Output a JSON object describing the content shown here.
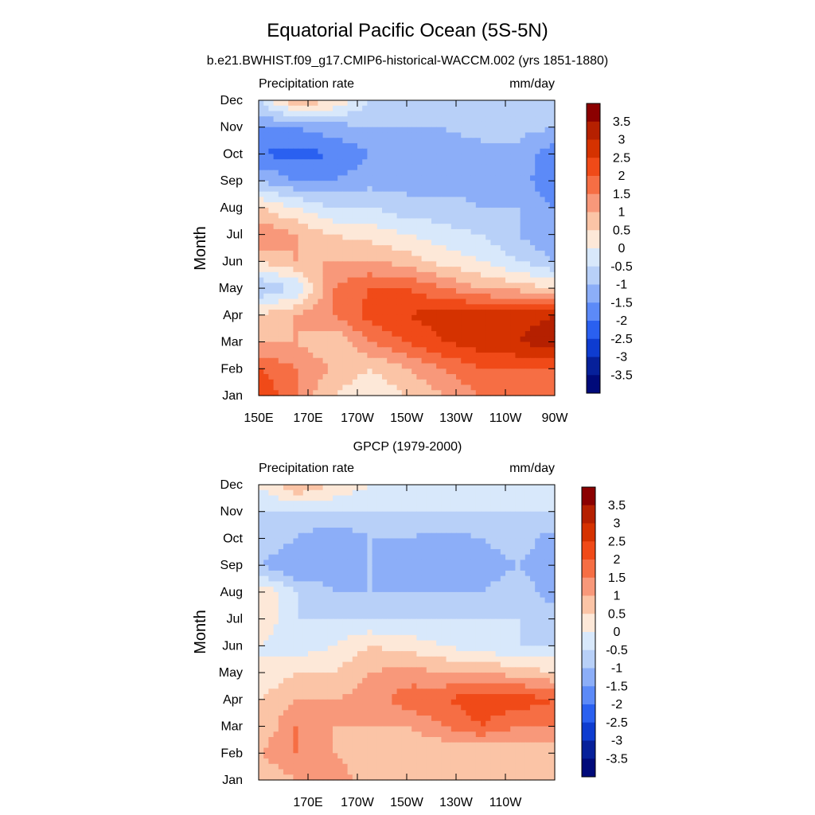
{
  "title": "Equatorial Pacific Ocean (5S-5N)",
  "colorbar": {
    "levels": [
      "3.5",
      "3",
      "2.5",
      "2",
      "1.5",
      "1",
      "0.5",
      "0",
      "-0.5",
      "-1",
      "-1.5",
      "-2",
      "-2.5",
      "-3",
      "-3.5"
    ],
    "colors": [
      "#8b0000",
      "#b52000",
      "#d53200",
      "#f04a18",
      "#f66e44",
      "#f8987a",
      "#fbc4a6",
      "#fde8d8",
      "#d8e8fb",
      "#b8d0f8",
      "#8caef8",
      "#5c8af8",
      "#2a60f0",
      "#0e3cd0",
      "#06209a",
      "#000a7a"
    ]
  },
  "chart_data": [
    {
      "type": "heatmap",
      "title": "b.e21.BWHIST.f09_g17.CMIP6-historical-WACCM.002 (yrs 1851-1880)",
      "left_label": "Precipitation rate",
      "right_label": "mm/day",
      "ylabel": "Month",
      "xlabel": "",
      "xlim": [
        150,
        270
      ],
      "x_ticks": [
        150,
        170,
        190,
        210,
        230,
        250,
        270
      ],
      "x_tick_labels": [
        "150E",
        "170E",
        "170W",
        "150W",
        "130W",
        "110W",
        "90W"
      ],
      "y_tick_labels": [
        "Jan",
        "Feb",
        "Mar",
        "Apr",
        "May",
        "Jun",
        "Jul",
        "Aug",
        "Sep",
        "Oct",
        "Nov",
        "Dec"
      ],
      "z_units": "mm/day",
      "x": [
        150,
        165,
        180,
        195,
        210,
        225,
        240,
        255,
        270
      ],
      "y": [
        "Jan",
        "Feb",
        "Mar",
        "Apr",
        "May",
        "Jun",
        "Jul",
        "Aug",
        "Sep",
        "Oct",
        "Nov",
        "Dec"
      ],
      "z": [
        [
          2.5,
          1.5,
          0.5,
          0,
          0.5,
          1,
          1.5,
          1.5,
          1.5
        ],
        [
          2,
          1.5,
          1,
          0.5,
          1,
          1.5,
          2,
          2,
          2
        ],
        [
          1,
          1,
          0.5,
          1.5,
          2,
          2.5,
          2.8,
          3,
          3.4
        ],
        [
          0.5,
          1,
          1.5,
          2.2,
          2.5,
          2.8,
          2.8,
          2.8,
          3
        ],
        [
          -1,
          -0.5,
          1.5,
          2,
          2,
          1.5,
          1,
          0.8,
          0.5
        ],
        [
          0.5,
          1,
          1,
          1,
          0.8,
          0.3,
          0,
          -0.5,
          -1
        ],
        [
          1.5,
          1,
          0.5,
          0.3,
          0,
          -0.3,
          -0.5,
          -1,
          -1.5
        ],
        [
          0.5,
          0,
          -0.5,
          -0.5,
          -0.8,
          -0.8,
          -1,
          -1,
          -1.5
        ],
        [
          -1,
          -1.5,
          -1.5,
          -1.2,
          -1.2,
          -1.2,
          -1.2,
          -1.2,
          -2
        ],
        [
          -2,
          -2.2,
          -2,
          -1.5,
          -1.2,
          -1.2,
          -1.2,
          -1.2,
          -1.8
        ],
        [
          -1.5,
          -1.5,
          -1.2,
          -1,
          -1,
          -1,
          -0.8,
          -0.8,
          -1
        ],
        [
          -0.5,
          1,
          0.5,
          -0.5,
          -0.5,
          -0.5,
          -0.5,
          -0.5,
          -0.5
        ]
      ]
    },
    {
      "type": "heatmap",
      "title": "GPCP (1979-2000)",
      "left_label": "Precipitation rate",
      "right_label": "mm/day",
      "ylabel": "Month",
      "xlabel": "",
      "xlim": [
        150,
        270
      ],
      "x_ticks": [
        170,
        190,
        210,
        230,
        250
      ],
      "x_tick_labels": [
        "170E",
        "170W",
        "150W",
        "130W",
        "110W"
      ],
      "y_tick_labels": [
        "Jan",
        "Feb",
        "Mar",
        "Apr",
        "May",
        "Jun",
        "Jul",
        "Aug",
        "Sep",
        "Oct",
        "Nov",
        "Dec"
      ],
      "z_units": "mm/day",
      "x": [
        150,
        165,
        180,
        195,
        210,
        225,
        240,
        255,
        270
      ],
      "y": [
        "Jan",
        "Feb",
        "Mar",
        "Apr",
        "May",
        "Jun",
        "Jul",
        "Aug",
        "Sep",
        "Oct",
        "Nov",
        "Dec"
      ],
      "z": [
        [
          0.5,
          1,
          1.5,
          0.5,
          0.5,
          0.5,
          0.5,
          0.5,
          0.5
        ],
        [
          1,
          1.5,
          1,
          0.5,
          0.5,
          0.5,
          0.5,
          0.5,
          0.5
        ],
        [
          0.5,
          1.5,
          1,
          1,
          1,
          1.5,
          2,
          1.5,
          1.5
        ],
        [
          0.5,
          1,
          1,
          1.2,
          1.8,
          2,
          2.3,
          2.3,
          2
        ],
        [
          0,
          0.5,
          0.5,
          1,
          1.2,
          1,
          1,
          0.8,
          0.5
        ],
        [
          0,
          -0.3,
          0,
          0.5,
          0.3,
          0,
          -0.3,
          -0.5,
          -0.5
        ],
        [
          0.5,
          -0.5,
          -0.5,
          -0.5,
          -0.5,
          -0.5,
          -0.5,
          -0.5,
          -0.8
        ],
        [
          0.5,
          -0.5,
          -1,
          -1,
          -1,
          -1,
          -1,
          -0.8,
          -1.2
        ],
        [
          -1,
          -1.5,
          -1.2,
          -1,
          -1.2,
          -1.2,
          -1.2,
          -1,
          -1.2
        ],
        [
          -0.5,
          -1,
          -1.5,
          -1,
          -1,
          -1.2,
          -1,
          -0.8,
          -1.2
        ],
        [
          -0.5,
          -0.5,
          -0.5,
          -0.5,
          -0.5,
          -0.5,
          -0.5,
          -0.5,
          -0.5
        ],
        [
          0,
          1,
          0.5,
          0,
          -0.3,
          -0.3,
          -0.3,
          -0.3,
          -0.3
        ]
      ]
    }
  ]
}
